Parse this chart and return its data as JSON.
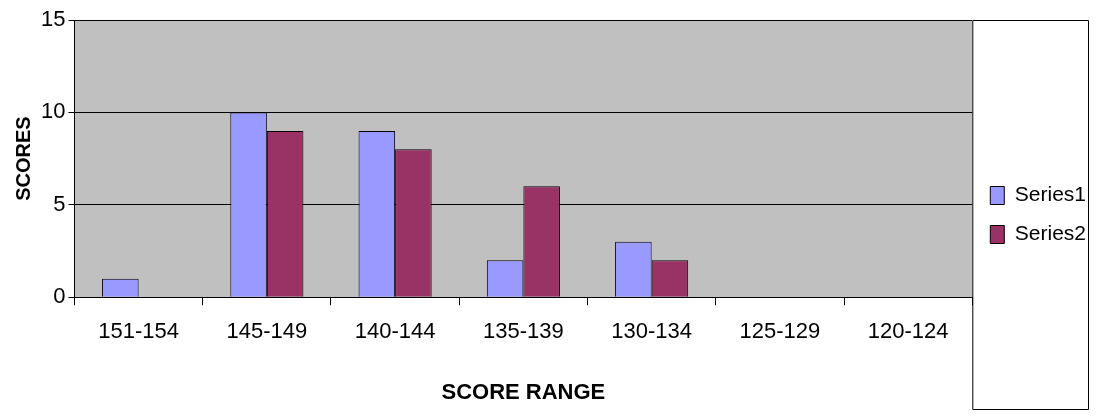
{
  "chart_data": {
    "type": "bar",
    "xlabel": "SCORE RANGE",
    "ylabel": "SCORES",
    "categories": [
      "151-154",
      "145-149",
      "140-144",
      "135-139",
      "130-134",
      "125-129",
      "120-124"
    ],
    "series": [
      {
        "name": "Series1",
        "color": "#9999ff",
        "values": [
          1,
          10,
          9,
          2,
          3,
          0,
          0
        ]
      },
      {
        "name": "Series2",
        "color": "#993366",
        "values": [
          0,
          9,
          8,
          6,
          2,
          0,
          0
        ]
      }
    ],
    "ylim": [
      0,
      15
    ],
    "yticks": [
      0,
      5,
      10,
      15
    ],
    "grid": "y",
    "legend": "right"
  }
}
